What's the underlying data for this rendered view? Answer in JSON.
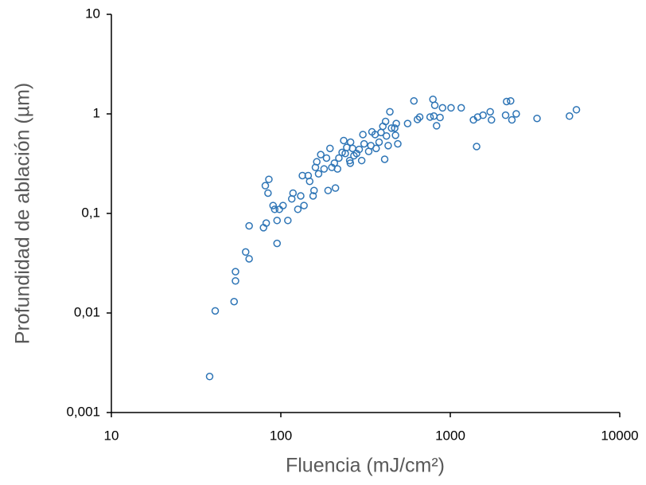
{
  "chart_data": {
    "type": "scatter",
    "x_label": "Fluencia (mJ/cm²)",
    "y_label": "Profundidad de ablación (µm)",
    "x_log": true,
    "y_log": true,
    "color": "#2e75b6",
    "xlim": [
      10,
      10000
    ],
    "xticks": [
      10,
      100,
      1000,
      10000
    ],
    "ylim": [
      0.001,
      10
    ],
    "yticks": [
      {
        "value": 0.001,
        "label": "0,001"
      },
      {
        "value": 0.01,
        "label": "0,01"
      },
      {
        "value": 0.1,
        "label": "0,1"
      },
      1,
      10
    ],
    "x": [
      38,
      41,
      53,
      54,
      54,
      62,
      65,
      65,
      79,
      81,
      82,
      84,
      85,
      90,
      92,
      95,
      95,
      98,
      103,
      110,
      116,
      118,
      126,
      131,
      134,
      137,
      145,
      148,
      155,
      157,
      160,
      163,
      167,
      172,
      180,
      186,
      190,
      195,
      200,
      207,
      210,
      216,
      220,
      230,
      235,
      240,
      245,
      255,
      257,
      258,
      265,
      270,
      280,
      290,
      300,
      305,
      310,
      330,
      340,
      345,
      360,
      365,
      380,
      390,
      400,
      410,
      415,
      420,
      430,
      440,
      450,
      470,
      475,
      480,
      490,
      560,
      610,
      640,
      660,
      760,
      790,
      800,
      810,
      830,
      870,
      900,
      1010,
      1160,
      1370,
      1430,
      1450,
      1560,
      1720,
      1750,
      2120,
      2150,
      2270,
      2310,
      2450,
      3250,
      5050,
      5550
    ],
    "values": [
      0.0023,
      0.0105,
      0.013,
      0.021,
      0.026,
      0.041,
      0.035,
      0.075,
      0.072,
      0.19,
      0.08,
      0.16,
      0.22,
      0.12,
      0.11,
      0.05,
      0.085,
      0.11,
      0.12,
      0.085,
      0.14,
      0.16,
      0.11,
      0.15,
      0.24,
      0.12,
      0.24,
      0.21,
      0.15,
      0.17,
      0.29,
      0.33,
      0.25,
      0.39,
      0.28,
      0.36,
      0.17,
      0.45,
      0.29,
      0.32,
      0.18,
      0.28,
      0.36,
      0.41,
      0.54,
      0.4,
      0.46,
      0.34,
      0.32,
      0.52,
      0.45,
      0.38,
      0.4,
      0.44,
      0.34,
      0.62,
      0.5,
      0.42,
      0.48,
      0.66,
      0.62,
      0.45,
      0.52,
      0.65,
      0.75,
      0.35,
      0.84,
      0.6,
      0.48,
      1.05,
      0.72,
      0.72,
      0.61,
      0.8,
      0.5,
      0.8,
      1.35,
      0.88,
      0.93,
      0.93,
      1.4,
      0.95,
      1.22,
      0.76,
      0.92,
      1.15,
      1.15,
      1.15,
      0.87,
      0.47,
      0.93,
      0.97,
      1.05,
      0.87,
      0.97,
      1.33,
      1.35,
      0.87,
      1.0,
      0.9,
      0.95,
      1.1
    ]
  }
}
